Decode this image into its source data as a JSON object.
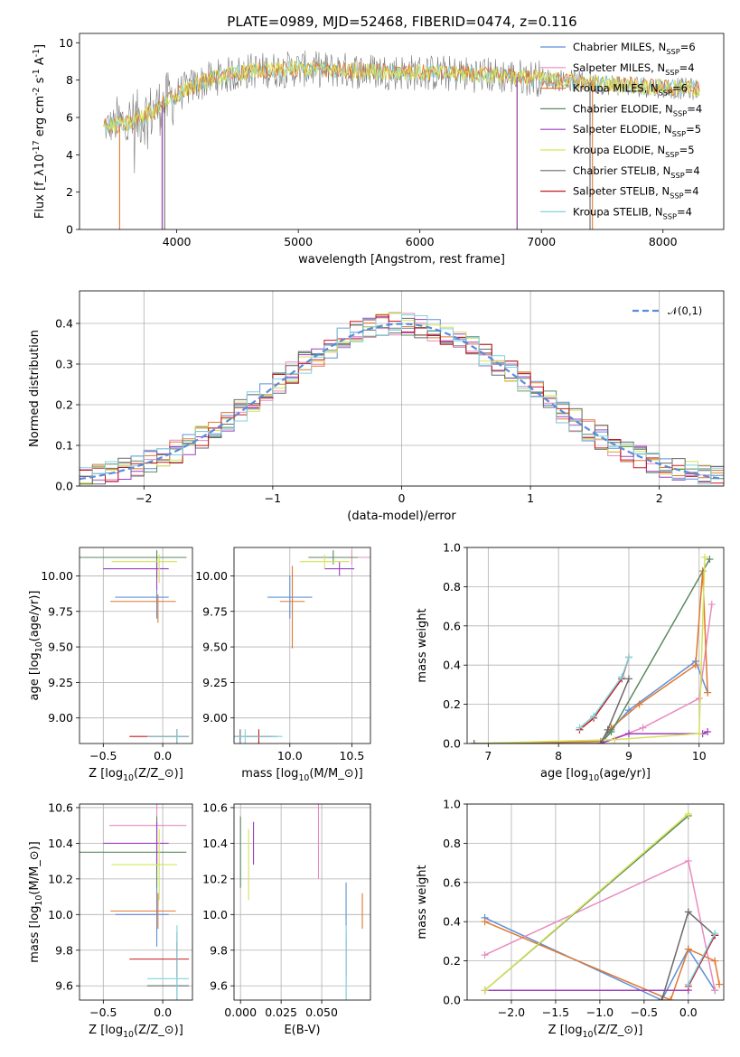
{
  "figure": {
    "title": "PLATE=0989, MJD=52468, FIBERID=0474, z=0.116"
  },
  "series_names": [
    "Chabrier MILES, N_{SSP}=6",
    "Salpeter MILES, N_{SSP}=4",
    "Kroupa MILES, N_{SSP}=6",
    "Chabrier ELODIE, N_{SSP}=4",
    "Salpeter ELODIE, N_{SSP}=5",
    "Kroupa ELODIE, N_{SSP}=5",
    "Chabrier STELIB, N_{SSP}=4",
    "Salpeter STELIB, N_{SSP}=4",
    "Kroupa STELIB, N_{SSP}=4"
  ],
  "series_colors": [
    "#5e8fd8",
    "#e88cc0",
    "#e07830",
    "#5a8a5e",
    "#9d3dc0",
    "#d6e35a",
    "#6a6a6a",
    "#c8191e",
    "#7fd3de"
  ],
  "chart_data": [
    {
      "id": "spectrum",
      "type": "line",
      "title": "PLATE=0989, MJD=52468, FIBERID=0474, z=0.116",
      "xlabel": "wavelength [Angstrom, rest frame]",
      "ylabel": "Flux [f_λ10^{-17} erg cm^{-2} s^{-1} A^{-1}]",
      "xlim": [
        3200,
        8500
      ],
      "ylim": [
        0,
        10.5
      ],
      "xticks": [
        4000,
        5000,
        6000,
        7000,
        8000
      ],
      "yticks": [
        0,
        2,
        4,
        6,
        8,
        10
      ],
      "legend": "top-right",
      "data_flux_continuum": [
        [
          3400,
          5.5
        ],
        [
          3600,
          5.7
        ],
        [
          3800,
          6.3
        ],
        [
          3950,
          7.0
        ],
        [
          4100,
          7.6
        ],
        [
          4300,
          8.1
        ],
        [
          4600,
          8.5
        ],
        [
          5000,
          8.6
        ],
        [
          5500,
          8.5
        ],
        [
          6000,
          8.4
        ],
        [
          6500,
          8.3
        ],
        [
          7000,
          8.1
        ],
        [
          7500,
          7.8
        ],
        [
          8000,
          7.6
        ],
        [
          8300,
          7.5
        ]
      ],
      "model_edges": {
        "Kroupa MILES": [
          3530,
          7420
        ],
        "Chabrier ELODIE": [
          3880,
          6800
        ],
        "Kroupa ELODIE": [
          3880,
          6800
        ],
        "Salpeter ELODIE": [
          3880,
          6800
        ],
        "Chabrier STELIB": [
          3900,
          7400
        ]
      }
    },
    {
      "id": "residuals",
      "type": "line",
      "xlabel": "(data-model)/error",
      "ylabel": "Normed distribution",
      "xlim": [
        -2.5,
        2.5
      ],
      "ylim": [
        0,
        0.48
      ],
      "xticks": [
        -2,
        -1,
        0,
        1,
        2
      ],
      "yticks": [
        0.0,
        0.1,
        0.2,
        0.3,
        0.4
      ],
      "legend": "top-right",
      "reference_label": "𝒩(0,1)",
      "reference_color": "#5b8bd9",
      "bin_width": 0.1
    },
    {
      "id": "age_vs_Z",
      "type": "scatter",
      "xlabel": "Z [log_{10}(Z/Z_⊙)]",
      "ylabel": "age  [log_{10}(age/yr)]",
      "xlim": [
        -0.7,
        0.25
      ],
      "ylim": [
        8.82,
        10.2
      ],
      "xticks": [
        -0.5,
        0.0
      ],
      "yticks": [
        9.0,
        9.25,
        9.5,
        9.75,
        10.0
      ]
    },
    {
      "id": "age_vs_mass",
      "type": "scatter",
      "xlabel": "mass [log_{10}(M/M_⊙)]",
      "xlim": [
        9.55,
        10.65
      ],
      "ylim": [
        8.82,
        10.2
      ],
      "xticks": [
        10.0,
        10.5
      ],
      "yticks": [
        9.0,
        9.25,
        9.5,
        9.75,
        10.0
      ]
    },
    {
      "id": "weight_vs_age",
      "type": "line",
      "xlabel": "age  [log_{10}(age/yr)]",
      "ylabel": "mass weight",
      "xlim": [
        6.7,
        10.35
      ],
      "ylim": [
        0,
        1.0
      ],
      "xticks": [
        7,
        8,
        9,
        10
      ],
      "yticks": [
        0.0,
        0.2,
        0.4,
        0.6,
        0.8,
        1.0
      ]
    },
    {
      "id": "mass_vs_Z",
      "type": "scatter",
      "xlabel": "Z [log_{10}(Z/Z_⊙)]",
      "ylabel": "mass [log_{10}(M/M_⊙)]",
      "xlim": [
        -0.7,
        0.25
      ],
      "ylim": [
        9.52,
        10.62
      ],
      "xticks": [
        -0.5,
        0.0
      ],
      "yticks": [
        9.6,
        9.8,
        10.0,
        10.2,
        10.4,
        10.6
      ]
    },
    {
      "id": "mass_vs_EBV",
      "type": "scatter",
      "xlabel": "E(B-V)",
      "xlim": [
        -0.004,
        0.08
      ],
      "ylim": [
        9.52,
        10.62
      ],
      "xticks": [
        0.0,
        0.025,
        0.05
      ],
      "yticks": [
        9.6,
        9.8,
        10.0,
        10.2,
        10.4,
        10.6
      ]
    },
    {
      "id": "weight_vs_Z",
      "type": "line",
      "xlabel": "Z [log_{10}(Z/Z_⊙)]",
      "ylabel": "mass weight",
      "xlim": [
        -2.5,
        0.4
      ],
      "ylim": [
        0,
        1.0
      ],
      "xticks": [
        -2.0,
        -1.5,
        -1.0,
        -0.5,
        0.0
      ],
      "yticks": [
        0.0,
        0.2,
        0.4,
        0.6,
        0.8,
        1.0
      ]
    }
  ],
  "sfh": {
    "Chabrier MILES": {
      "age": 9.85,
      "age_err": [
        0.1,
        0.1
      ],
      "Z": -0.05,
      "Z_err": [
        0.35,
        0.1
      ],
      "mass": 10.0,
      "mass_err": [
        0.18,
        0.18
      ],
      "ebv": 0.065,
      "w_age": [
        [
          6.8,
          0.0
        ],
        [
          8.6,
          0.01
        ],
        [
          8.75,
          0.07
        ],
        [
          9.0,
          0.17
        ],
        [
          9.95,
          0.42
        ],
        [
          10.12,
          0.26
        ]
      ],
      "w_Z": [
        [
          -2.3,
          0.42
        ],
        [
          -0.3,
          0.0
        ],
        [
          0.0,
          0.26
        ],
        [
          0.3,
          0.05
        ]
      ]
    },
    "Salpeter MILES": {
      "age": 10.13,
      "age_err": [
        0.0,
        0.0
      ],
      "Z": -0.05,
      "Z_err": [
        0.4,
        0.25
      ],
      "mass": 10.5,
      "mass_err": [
        0.3,
        0.3
      ],
      "ebv": 0.048,
      "w_age": [
        [
          8.6,
          0.0
        ],
        [
          9.2,
          0.08
        ],
        [
          10.0,
          0.23
        ],
        [
          10.18,
          0.71
        ]
      ],
      "w_Z": [
        [
          -2.3,
          0.23
        ],
        [
          0.0,
          0.71
        ],
        [
          0.3,
          0.05
        ]
      ]
    },
    "Kroupa MILES": {
      "age": 9.82,
      "age_err": [
        0.28,
        0.2
      ],
      "Z": -0.04,
      "Z_err": [
        0.4,
        0.15
      ],
      "mass": 10.02,
      "mass_err": [
        0.1,
        0.1
      ],
      "ebv": 0.075,
      "w_age": [
        [
          6.8,
          0.0
        ],
        [
          8.6,
          0.01
        ],
        [
          8.75,
          0.08
        ],
        [
          9.15,
          0.2
        ],
        [
          9.95,
          0.4
        ],
        [
          10.05,
          0.88
        ],
        [
          10.12,
          0.26
        ]
      ],
      "w_Z": [
        [
          -2.3,
          0.4
        ],
        [
          -0.2,
          0.0
        ],
        [
          0.0,
          0.26
        ],
        [
          0.3,
          0.2
        ],
        [
          0.35,
          0.08
        ]
      ]
    },
    "Chabrier ELODIE": {
      "age": 10.13,
      "age_err": [
        0.0,
        0.0
      ],
      "Z": -0.05,
      "Z_err": [
        0.7,
        0.25
      ],
      "mass": 10.35,
      "mass_err": [
        0.2,
        0.2
      ],
      "ebv": 0.0,
      "w_age": [
        [
          8.6,
          0.0
        ],
        [
          8.75,
          0.06
        ],
        [
          10.15,
          0.94
        ]
      ],
      "w_Z": [
        [
          -2.3,
          0.05
        ],
        [
          0.0,
          0.94
        ]
      ]
    },
    "Salpeter ELODIE": {
      "age": 10.05,
      "age_err": [
        0.0,
        0.0
      ],
      "Z": -0.05,
      "Z_err": [
        0.45,
        0.1
      ],
      "mass": 10.4,
      "mass_err": [
        0.12,
        0.12
      ],
      "ebv": 0.008,
      "w_age": [
        [
          8.6,
          0.0
        ],
        [
          9.0,
          0.05
        ],
        [
          10.05,
          0.05
        ],
        [
          10.12,
          0.06
        ]
      ],
      "w_Z": [
        [
          -2.3,
          0.05
        ],
        [
          0.0,
          0.05
        ]
      ]
    },
    "Kroupa ELODIE": {
      "age": 10.1,
      "age_err": [
        0.0,
        0.0
      ],
      "Z": -0.03,
      "Z_err": [
        0.4,
        0.15
      ],
      "mass": 10.28,
      "mass_err": [
        0.2,
        0.2
      ],
      "ebv": 0.005,
      "w_age": [
        [
          6.8,
          0.0
        ],
        [
          8.8,
          0.02
        ],
        [
          10.0,
          0.05
        ],
        [
          10.08,
          0.95
        ]
      ],
      "w_Z": [
        [
          -2.3,
          0.05
        ],
        [
          0.0,
          0.95
        ]
      ]
    },
    "Chabrier STELIB": {
      "age": 8.87,
      "age_err": [
        0.0,
        0.0
      ],
      "Z": 0.12,
      "Z_err": [
        0.25,
        0.1
      ],
      "mass": 9.6,
      "mass_err": [
        0.3,
        0.3
      ],
      "ebv": 0.065,
      "w_age": [
        [
          6.8,
          0.0
        ],
        [
          8.6,
          0.0
        ],
        [
          8.7,
          0.07
        ],
        [
          9.0,
          0.33
        ]
      ],
      "w_Z": [
        [
          -0.3,
          0.0
        ],
        [
          0.0,
          0.45
        ],
        [
          0.3,
          0.33
        ]
      ]
    },
    "Salpeter STELIB": {
      "age": 8.87,
      "age_err": [
        0.0,
        0.0
      ],
      "Z": 0.12,
      "Z_err": [
        0.4,
        0.1
      ],
      "mass": 9.75,
      "mass_err": [
        0.1,
        0.1
      ],
      "ebv": 0.065,
      "w_age": [
        [
          8.3,
          0.07
        ],
        [
          8.5,
          0.13
        ],
        [
          8.9,
          0.33
        ],
        [
          9.0,
          0.44
        ]
      ],
      "w_Z": [
        [
          0.0,
          0.07
        ],
        [
          0.3,
          0.33
        ]
      ]
    },
    "Kroupa STELIB": {
      "age": 8.87,
      "age_err": [
        0.0,
        0.0
      ],
      "Z": 0.12,
      "Z_err": [
        0.25,
        0.1
      ],
      "mass": 9.64,
      "mass_err": [
        0.3,
        0.3
      ],
      "ebv": 0.065,
      "w_age": [
        [
          8.3,
          0.08
        ],
        [
          8.5,
          0.14
        ],
        [
          8.9,
          0.34
        ],
        [
          9.0,
          0.44
        ]
      ],
      "w_Z": [
        [
          0.0,
          0.08
        ],
        [
          0.3,
          0.34
        ]
      ]
    }
  }
}
